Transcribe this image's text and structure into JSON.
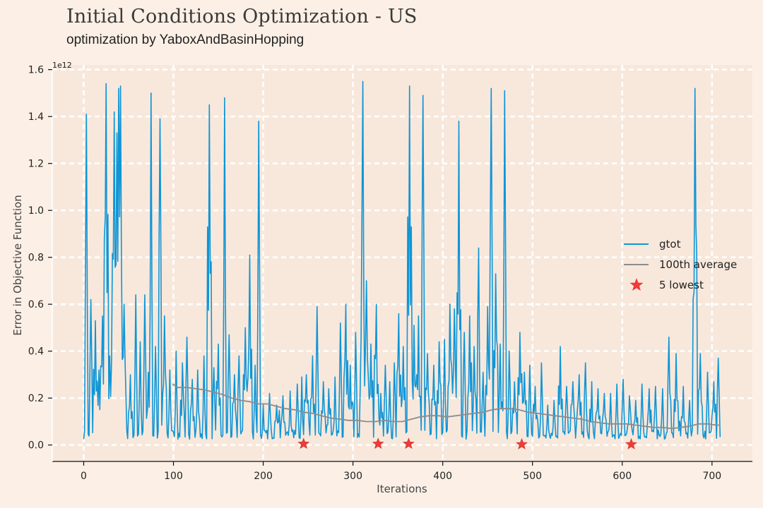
{
  "title": "Initial Conditions Optimization - US",
  "subtitle": "optimization by YaboxAndBasinHopping",
  "chart_data": {
    "type": "line",
    "xlabel": "Iterations",
    "ylabel": "Error in Objective Function",
    "y_scale_note": "1e12",
    "xlim": [
      -35,
      745
    ],
    "ylim": [
      -0.07,
      1.62
    ],
    "xticks": [
      0,
      100,
      200,
      300,
      400,
      500,
      600,
      700
    ],
    "yticks": [
      0.0,
      0.2,
      0.4,
      0.6,
      0.8,
      1.0,
      1.2,
      1.4,
      1.6
    ],
    "ytick_labels": [
      "0.0",
      "0.2",
      "0.4",
      "0.6",
      "0.8",
      "1.0",
      "1.2",
      "1.4",
      "1.6"
    ],
    "grid": true,
    "legend_position": "right",
    "n_iterations": 710,
    "gtot_peaks": [
      [
        3,
        1.41
      ],
      [
        8,
        0.62
      ],
      [
        13,
        0.53
      ],
      [
        17,
        0.32
      ],
      [
        21,
        0.55
      ],
      [
        25,
        1.54
      ],
      [
        29,
        0.38
      ],
      [
        32,
        0.72
      ],
      [
        34,
        1.42
      ],
      [
        37,
        1.33
      ],
      [
        39,
        1.52
      ],
      [
        41,
        1.53
      ],
      [
        45,
        0.6
      ],
      [
        52,
        0.3
      ],
      [
        58,
        0.64
      ],
      [
        63,
        0.44
      ],
      [
        68,
        0.64
      ],
      [
        72,
        0.31
      ],
      [
        75,
        1.5
      ],
      [
        80,
        0.42
      ],
      [
        85,
        1.39
      ],
      [
        90,
        0.55
      ],
      [
        96,
        0.32
      ],
      [
        103,
        0.4
      ],
      [
        110,
        0.35
      ],
      [
        115,
        0.46
      ],
      [
        121,
        0.28
      ],
      [
        127,
        0.32
      ],
      [
        134,
        0.38
      ],
      [
        140,
        1.45
      ],
      [
        145,
        0.33
      ],
      [
        150,
        0.43
      ],
      [
        157,
        1.48
      ],
      [
        162,
        0.47
      ],
      [
        168,
        0.3
      ],
      [
        173,
        0.38
      ],
      [
        180,
        0.5
      ],
      [
        185,
        0.81
      ],
      [
        191,
        0.34
      ],
      [
        195,
        1.38
      ],
      [
        207,
        0.22
      ],
      [
        215,
        0.17
      ],
      [
        222,
        0.21
      ],
      [
        230,
        0.23
      ],
      [
        238,
        0.26
      ],
      [
        243,
        0.29
      ],
      [
        248,
        0.3
      ],
      [
        255,
        0.38
      ],
      [
        260,
        0.59
      ],
      [
        267,
        0.27
      ],
      [
        273,
        0.24
      ],
      [
        280,
        0.29
      ],
      [
        286,
        0.52
      ],
      [
        292,
        0.6
      ],
      [
        297,
        0.34
      ],
      [
        303,
        0.48
      ],
      [
        309,
        0.45
      ],
      [
        311,
        1.55
      ],
      [
        315,
        0.7
      ],
      [
        320,
        0.43
      ],
      [
        326,
        0.6
      ],
      [
        331,
        0.22
      ],
      [
        336,
        0.34
      ],
      [
        341,
        0.27
      ],
      [
        346,
        0.35
      ],
      [
        351,
        0.56
      ],
      [
        356,
        0.42
      ],
      [
        363,
        1.53
      ],
      [
        368,
        0.51
      ],
      [
        373,
        0.55
      ],
      [
        378,
        1.49
      ],
      [
        383,
        0.39
      ],
      [
        390,
        0.34
      ],
      [
        396,
        0.44
      ],
      [
        402,
        0.45
      ],
      [
        408,
        0.6
      ],
      [
        413,
        0.58
      ],
      [
        418,
        1.38
      ],
      [
        424,
        0.48
      ],
      [
        430,
        0.55
      ],
      [
        435,
        0.42
      ],
      [
        440,
        0.84
      ],
      [
        445,
        0.31
      ],
      [
        450,
        0.59
      ],
      [
        454,
        1.52
      ],
      [
        459,
        0.73
      ],
      [
        464,
        0.43
      ],
      [
        469,
        1.51
      ],
      [
        474,
        0.4
      ],
      [
        480,
        0.27
      ],
      [
        486,
        0.48
      ],
      [
        491,
        0.31
      ],
      [
        497,
        0.34
      ],
      [
        503,
        0.25
      ],
      [
        510,
        0.35
      ],
      [
        517,
        0.17
      ],
      [
        524,
        0.19
      ],
      [
        531,
        0.42
      ],
      [
        538,
        0.25
      ],
      [
        545,
        0.27
      ],
      [
        552,
        0.3
      ],
      [
        559,
        0.35
      ],
      [
        566,
        0.27
      ],
      [
        573,
        0.24
      ],
      [
        580,
        0.22
      ],
      [
        587,
        0.22
      ],
      [
        594,
        0.26
      ],
      [
        601,
        0.28
      ],
      [
        608,
        0.21
      ],
      [
        615,
        0.19
      ],
      [
        622,
        0.26
      ],
      [
        630,
        0.24
      ],
      [
        637,
        0.25
      ],
      [
        645,
        0.24
      ],
      [
        652,
        0.46
      ],
      [
        660,
        0.39
      ],
      [
        668,
        0.25
      ],
      [
        675,
        0.19
      ],
      [
        681,
        1.52
      ],
      [
        687,
        0.39
      ],
      [
        695,
        0.31
      ],
      [
        702,
        0.27
      ],
      [
        707,
        0.37
      ]
    ],
    "gtot_base": 0.045,
    "average_points": [
      [
        99,
        0.26
      ],
      [
        105,
        0.245
      ],
      [
        115,
        0.245
      ],
      [
        125,
        0.24
      ],
      [
        135,
        0.235
      ],
      [
        145,
        0.225
      ],
      [
        155,
        0.215
      ],
      [
        165,
        0.2
      ],
      [
        175,
        0.19
      ],
      [
        185,
        0.185
      ],
      [
        195,
        0.175
      ],
      [
        205,
        0.175
      ],
      [
        215,
        0.165
      ],
      [
        225,
        0.155
      ],
      [
        235,
        0.15
      ],
      [
        245,
        0.14
      ],
      [
        255,
        0.135
      ],
      [
        265,
        0.125
      ],
      [
        275,
        0.115
      ],
      [
        285,
        0.11
      ],
      [
        295,
        0.105
      ],
      [
        305,
        0.105
      ],
      [
        315,
        0.1
      ],
      [
        325,
        0.1
      ],
      [
        335,
        0.105
      ],
      [
        345,
        0.1
      ],
      [
        355,
        0.1
      ],
      [
        365,
        0.11
      ],
      [
        375,
        0.12
      ],
      [
        385,
        0.125
      ],
      [
        395,
        0.125
      ],
      [
        405,
        0.12
      ],
      [
        415,
        0.125
      ],
      [
        425,
        0.13
      ],
      [
        435,
        0.135
      ],
      [
        445,
        0.14
      ],
      [
        455,
        0.15
      ],
      [
        465,
        0.155
      ],
      [
        475,
        0.155
      ],
      [
        485,
        0.15
      ],
      [
        495,
        0.14
      ],
      [
        505,
        0.135
      ],
      [
        515,
        0.13
      ],
      [
        525,
        0.125
      ],
      [
        535,
        0.12
      ],
      [
        545,
        0.115
      ],
      [
        555,
        0.11
      ],
      [
        565,
        0.1
      ],
      [
        575,
        0.095
      ],
      [
        585,
        0.09
      ],
      [
        595,
        0.09
      ],
      [
        605,
        0.09
      ],
      [
        615,
        0.085
      ],
      [
        625,
        0.08
      ],
      [
        635,
        0.075
      ],
      [
        645,
        0.075
      ],
      [
        655,
        0.07
      ],
      [
        665,
        0.075
      ],
      [
        675,
        0.08
      ],
      [
        685,
        0.09
      ],
      [
        695,
        0.09
      ],
      [
        705,
        0.085
      ],
      [
        709,
        0.085
      ]
    ],
    "lowest_points": [
      [
        245,
        0.005
      ],
      [
        328,
        0.005
      ],
      [
        362,
        0.005
      ],
      [
        488,
        0.003
      ],
      [
        610,
        0.003
      ]
    ],
    "series": [
      {
        "name": "gtot",
        "color": "#0f95d6",
        "kind": "line"
      },
      {
        "name": "100th average",
        "color": "#8c8c8c",
        "kind": "line"
      },
      {
        "name": "5 lowest",
        "color": "#f03a3a",
        "kind": "star"
      }
    ]
  },
  "colors": {
    "background": "#fcf0e6",
    "plot_area": "#f8e8dc",
    "grid": "#ffffff"
  }
}
